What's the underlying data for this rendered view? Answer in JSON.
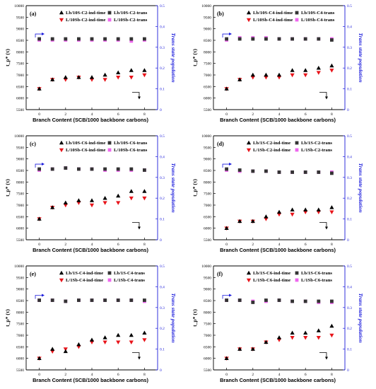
{
  "colors": {
    "ind_time_Lb": "#000000",
    "ind_time_L": "#e8141a",
    "trans_Lb": "#333333",
    "trans_L": "#ee66ee",
    "right_axis": "#1a1adb"
  },
  "chart_data": [
    {
      "type": "scatter",
      "panel_label": "(a)",
      "xlabel": "Branch Content (SCB/1000 backbone carbons)",
      "ylabel": "t_p* (τ)",
      "y2label": "Trans state population",
      "xlim": [
        -1,
        9
      ],
      "ylim": [
        5500,
        10000
      ],
      "y2lim": [
        0,
        0.5
      ],
      "x_ticks": [
        0,
        2,
        4,
        6,
        8
      ],
      "y_ticks": [
        5500,
        6000,
        6500,
        7000,
        7500,
        8000,
        8500,
        9000,
        9500,
        10000
      ],
      "y2_ticks": [
        0,
        0.1,
        0.2,
        0.3,
        0.4,
        0.5
      ],
      "grid": false,
      "legend_position": "top-right",
      "series": [
        {
          "name": "Lb/10S-C2-ind-time",
          "axis": "left",
          "marker": "triangle-up",
          "color": "#000000",
          "x": [
            0,
            1,
            2,
            3,
            4,
            5,
            6,
            7,
            8
          ],
          "y": [
            6400,
            6800,
            6900,
            6900,
            6900,
            7000,
            7100,
            7200,
            7200
          ]
        },
        {
          "name": "L/10Sb-C2-ind-time",
          "axis": "left",
          "marker": "triangle-down",
          "color": "#e8141a",
          "x": [
            0,
            1,
            2,
            3,
            4,
            5,
            6,
            7,
            8
          ],
          "y": [
            6400,
            6800,
            6800,
            6900,
            6800,
            6800,
            6900,
            6900,
            7000
          ]
        },
        {
          "name": "Lb/10S-C2-trans",
          "axis": "right",
          "marker": "square",
          "color": "#333333",
          "x": [
            0,
            1,
            2,
            3,
            4,
            5,
            6,
            7,
            8
          ],
          "y": [
            0.34,
            0.34,
            0.34,
            0.34,
            0.34,
            0.34,
            0.34,
            0.34,
            0.34
          ]
        },
        {
          "name": "L/10Sb-C2-trans",
          "axis": "right",
          "marker": "square",
          "color": "#ee66ee",
          "x": [
            0,
            1,
            2,
            3,
            4,
            5,
            6,
            7,
            8
          ],
          "y": [
            0.335,
            0.335,
            0.335,
            0.335,
            0.335,
            0.335,
            0.335,
            0.33,
            0.335
          ]
        }
      ]
    },
    {
      "type": "scatter",
      "panel_label": "(b)",
      "xlabel": "Branch Content (SCB/1000 backbone carbons)",
      "ylabel": "t_p* (τ)",
      "y2label": "Trans state population",
      "xlim": [
        -1,
        9
      ],
      "ylim": [
        5500,
        10000
      ],
      "y2lim": [
        0,
        0.5
      ],
      "x_ticks": [
        0,
        2,
        4,
        6,
        8
      ],
      "y_ticks": [
        5500,
        6000,
        6500,
        7000,
        7500,
        8000,
        8500,
        9000,
        9500,
        10000
      ],
      "y2_ticks": [
        0,
        0.1,
        0.2,
        0.3,
        0.4,
        0.5
      ],
      "grid": false,
      "legend_position": "top-right",
      "series": [
        {
          "name": "Lb/10S-C4-ind-time",
          "axis": "left",
          "marker": "triangle-up",
          "color": "#000000",
          "x": [
            0,
            1,
            2,
            3,
            4,
            5,
            6,
            7,
            8
          ],
          "y": [
            6400,
            6800,
            7000,
            7000,
            7000,
            7200,
            7200,
            7300,
            7400
          ]
        },
        {
          "name": "L/10Sb-C4-ind-time",
          "axis": "left",
          "marker": "triangle-down",
          "color": "#e8141a",
          "x": [
            0,
            1,
            2,
            3,
            4,
            5,
            6,
            7,
            8
          ],
          "y": [
            6400,
            6800,
            6900,
            6900,
            6900,
            7000,
            7000,
            7100,
            7200
          ]
        },
        {
          "name": "Lb/10S-C4-trans",
          "axis": "right",
          "marker": "square",
          "color": "#333333",
          "x": [
            0,
            1,
            2,
            3,
            4,
            5,
            6,
            7,
            8
          ],
          "y": [
            0.34,
            0.34,
            0.34,
            0.34,
            0.34,
            0.34,
            0.34,
            0.34,
            0.335
          ]
        },
        {
          "name": "L/10Sb-C4-trans",
          "axis": "right",
          "marker": "square",
          "color": "#ee66ee",
          "x": [
            0,
            1,
            2,
            3,
            4,
            5,
            6,
            7,
            8
          ],
          "y": [
            0.335,
            0.345,
            0.345,
            0.345,
            0.34,
            0.34,
            0.34,
            0.34,
            0.34
          ]
        }
      ]
    },
    {
      "type": "scatter",
      "panel_label": "(c)",
      "xlabel": "Branch Content (SCB/1000 backbone carbons)",
      "ylabel": "t_p* (τ)",
      "y2label": "Trans state population",
      "xlim": [
        -1,
        9
      ],
      "ylim": [
        5500,
        10000
      ],
      "y2lim": [
        0,
        0.5
      ],
      "x_ticks": [
        0,
        2,
        4,
        6,
        8
      ],
      "y_ticks": [
        5500,
        6000,
        6500,
        7000,
        7500,
        8000,
        8500,
        9000,
        9500,
        10000
      ],
      "y2_ticks": [
        0,
        0.1,
        0.2,
        0.3,
        0.4,
        0.5
      ],
      "grid": false,
      "legend_position": "top-right",
      "series": [
        {
          "name": "Lb/10S-C6-ind-time",
          "axis": "left",
          "marker": "triangle-up",
          "color": "#000000",
          "x": [
            0,
            1,
            2,
            3,
            4,
            5,
            6,
            7,
            8
          ],
          "y": [
            6400,
            6900,
            7100,
            7200,
            7200,
            7300,
            7400,
            7600,
            7600
          ]
        },
        {
          "name": "L/10Sb-C6-ind-time",
          "axis": "left",
          "marker": "triangle-down",
          "color": "#e8141a",
          "x": [
            0,
            1,
            2,
            3,
            4,
            5,
            6,
            7,
            8
          ],
          "y": [
            6400,
            6900,
            7000,
            7100,
            7000,
            7100,
            7100,
            7300,
            7300
          ]
        },
        {
          "name": "Lb/10S-C6-trans",
          "axis": "right",
          "marker": "square",
          "color": "#333333",
          "x": [
            0,
            1,
            2,
            3,
            4,
            5,
            6,
            7,
            8
          ],
          "y": [
            0.34,
            0.34,
            0.345,
            0.34,
            0.34,
            0.34,
            0.34,
            0.34,
            0.335
          ]
        },
        {
          "name": "L/10Sb-C6-trans",
          "axis": "right",
          "marker": "square",
          "color": "#ee66ee",
          "x": [
            0,
            1,
            2,
            3,
            4,
            5,
            6,
            7,
            8
          ],
          "y": [
            0.335,
            0.34,
            0.345,
            0.34,
            0.34,
            0.335,
            0.335,
            0.335,
            0.335
          ]
        }
      ]
    },
    {
      "type": "scatter",
      "panel_label": "(d)",
      "xlabel": "Branch Content (SCB/1000 backbone carbons)",
      "ylabel": "t_p* (τ)",
      "y2label": "Trans state population",
      "xlim": [
        -1,
        9
      ],
      "ylim": [
        5500,
        10000
      ],
      "y2lim": [
        0,
        0.5
      ],
      "x_ticks": [
        0,
        2,
        4,
        6,
        8
      ],
      "y_ticks": [
        5500,
        6000,
        6500,
        7000,
        7500,
        8000,
        8500,
        9000,
        9500,
        10000
      ],
      "y2_ticks": [
        0,
        0.1,
        0.2,
        0.3,
        0.4,
        0.5
      ],
      "grid": false,
      "legend_position": "top-right",
      "series": [
        {
          "name": "Lb/1S-C2-ind-time",
          "axis": "left",
          "marker": "triangle-up",
          "color": "#000000",
          "x": [
            0,
            1,
            2,
            3,
            4,
            5,
            6,
            7,
            8
          ],
          "y": [
            6000,
            6300,
            6300,
            6500,
            6700,
            6800,
            6800,
            6800,
            6900
          ]
        },
        {
          "name": "L/1Sb-C2-ind-time",
          "axis": "left",
          "marker": "triangle-down",
          "color": "#e8141a",
          "x": [
            0,
            1,
            2,
            3,
            4,
            5,
            6,
            7,
            8
          ],
          "y": [
            6000,
            6300,
            6300,
            6400,
            6600,
            6600,
            6700,
            6700,
            6700
          ]
        },
        {
          "name": "Lb/1S-C2-trans",
          "axis": "right",
          "marker": "square",
          "color": "#333333",
          "x": [
            0,
            1,
            2,
            3,
            4,
            5,
            6,
            7,
            8
          ],
          "y": [
            0.34,
            0.335,
            0.33,
            0.33,
            0.325,
            0.325,
            0.325,
            0.325,
            0.32
          ]
        },
        {
          "name": "L/1Sb-C2-trans",
          "axis": "right",
          "marker": "square",
          "color": "#ee66ee",
          "x": [
            0,
            1,
            2,
            3,
            4,
            5,
            6,
            7,
            8
          ],
          "y": [
            0.335,
            0.33,
            0.33,
            0.33,
            0.325,
            0.325,
            0.325,
            0.325,
            0.325
          ]
        }
      ]
    },
    {
      "type": "scatter",
      "panel_label": "(e)",
      "xlabel": "Branch Content (SCB/1000 backbone carbons)",
      "ylabel": "t_p* (τ)",
      "y2label": "Trans state population",
      "xlim": [
        -1,
        9
      ],
      "ylim": [
        5500,
        10000
      ],
      "y2lim": [
        0,
        0.5
      ],
      "x_ticks": [
        0,
        2,
        4,
        6,
        8
      ],
      "y_ticks": [
        5500,
        6000,
        6500,
        7000,
        7500,
        8000,
        8500,
        9000,
        9500,
        10000
      ],
      "y2_ticks": [
        0,
        0.1,
        0.2,
        0.3,
        0.4,
        0.5
      ],
      "grid": false,
      "legend_position": "top-right",
      "series": [
        {
          "name": "Lb/1S-C4-ind-time",
          "axis": "left",
          "marker": "triangle-up",
          "color": "#000000",
          "x": [
            0,
            1,
            2,
            3,
            4,
            5,
            6,
            7,
            8
          ],
          "y": [
            6000,
            6400,
            6300,
            6600,
            6800,
            6900,
            7000,
            7000,
            7100
          ]
        },
        {
          "name": "L/1Sb-C4-ind-time",
          "axis": "left",
          "marker": "triangle-down",
          "color": "#e8141a",
          "x": [
            0,
            1,
            2,
            3,
            4,
            5,
            6,
            7,
            8
          ],
          "y": [
            6000,
            6300,
            6400,
            6500,
            6700,
            6700,
            6700,
            6700,
            6800
          ]
        },
        {
          "name": "Lb/1S-C4-trans",
          "axis": "right",
          "marker": "square",
          "color": "#333333",
          "x": [
            0,
            1,
            2,
            3,
            4,
            5,
            6,
            7,
            8
          ],
          "y": [
            0.335,
            0.335,
            0.33,
            0.335,
            0.335,
            0.335,
            0.335,
            0.335,
            0.335
          ]
        },
        {
          "name": "L/1Sb-C4-trans",
          "axis": "right",
          "marker": "square",
          "color": "#ee66ee",
          "x": [
            0,
            1,
            2,
            3,
            4,
            5,
            6,
            7,
            8
          ],
          "y": [
            0.335,
            0.335,
            0.33,
            0.335,
            0.335,
            0.335,
            0.335,
            0.335,
            0.33
          ]
        }
      ]
    },
    {
      "type": "scatter",
      "panel_label": "(f)",
      "xlabel": "Branch Content (SCB/1000 backbone carbons)",
      "ylabel": "t_p* (τ)",
      "y2label": "Trans state population",
      "xlim": [
        -1,
        9
      ],
      "ylim": [
        5500,
        10000
      ],
      "y2lim": [
        0,
        0.5
      ],
      "x_ticks": [
        0,
        2,
        4,
        6,
        8
      ],
      "y_ticks": [
        5500,
        6000,
        6500,
        7000,
        7500,
        8000,
        8500,
        9000,
        9500,
        10000
      ],
      "y2_ticks": [
        0,
        0.1,
        0.2,
        0.3,
        0.4,
        0.5
      ],
      "grid": false,
      "legend_position": "top-right",
      "series": [
        {
          "name": "Lb/1S-C6-ind-time",
          "axis": "left",
          "marker": "triangle-up",
          "color": "#000000",
          "x": [
            0,
            1,
            2,
            3,
            4,
            5,
            6,
            7,
            8
          ],
          "y": [
            6000,
            6400,
            6400,
            6700,
            6900,
            7100,
            7100,
            7200,
            7400
          ]
        },
        {
          "name": "L/1Sb-C6-ind-time",
          "axis": "left",
          "marker": "triangle-down",
          "color": "#e8141a",
          "x": [
            0,
            1,
            2,
            3,
            4,
            5,
            6,
            7,
            8
          ],
          "y": [
            6000,
            6400,
            6400,
            6700,
            6800,
            6900,
            6900,
            6900,
            7000
          ]
        },
        {
          "name": "Lb/1S-C6-trans",
          "axis": "right",
          "marker": "square",
          "color": "#333333",
          "x": [
            0,
            1,
            2,
            3,
            4,
            5,
            6,
            7,
            8
          ],
          "y": [
            0.335,
            0.335,
            0.325,
            0.335,
            0.335,
            0.33,
            0.33,
            0.33,
            0.33
          ]
        },
        {
          "name": "L/1Sb-C6-trans",
          "axis": "right",
          "marker": "square",
          "color": "#ee66ee",
          "x": [
            0,
            1,
            2,
            3,
            4,
            5,
            6,
            7,
            8
          ],
          "y": [
            0.335,
            0.335,
            0.33,
            0.33,
            0.335,
            0.33,
            0.33,
            0.325,
            0.325
          ]
        }
      ]
    }
  ]
}
